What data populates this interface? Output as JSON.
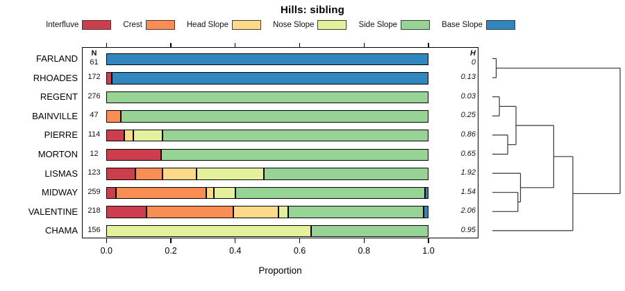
{
  "title": "Hills: sibling",
  "chart_data": {
    "type": "bar",
    "stacked": true,
    "orientation": "horizontal",
    "title": "Hills: sibling",
    "xlabel": "Proportion",
    "xlim": [
      0,
      1
    ],
    "xticks": [
      "0.0",
      "0.2",
      "0.4",
      "0.6",
      "0.8",
      "1.0"
    ],
    "grid": false,
    "legend_position": "top",
    "n_header": "N",
    "h_header": "H",
    "rows": [
      "FARLAND",
      "RHOADES",
      "REGENT",
      "BAINVILLE",
      "PIERRE",
      "MORTON",
      "LISMAS",
      "MIDWAY",
      "VALENTINE",
      "CHAMA"
    ],
    "n_values": [
      "61",
      "172",
      "276",
      "47",
      "114",
      "12",
      "123",
      "259",
      "218",
      "156"
    ],
    "h_values": [
      "0",
      "0.13",
      "0.03",
      "0.25",
      "0.86",
      "0.65",
      "1.92",
      "1.54",
      "2.06",
      "0.95"
    ],
    "series": [
      {
        "label": "Interfluve",
        "color": "#CC3D4E",
        "values": [
          0,
          0.018,
          0,
          0,
          0.055,
          0.17,
          0.09,
          0.03,
          0.125,
          0
        ]
      },
      {
        "label": "Crest",
        "color": "#F98E54",
        "values": [
          0,
          0,
          0,
          0.045,
          0,
          0,
          0.085,
          0.28,
          0.27,
          0
        ]
      },
      {
        "label": "Head Slope",
        "color": "#FDDA8A",
        "values": [
          0,
          0,
          0,
          0,
          0.03,
          0,
          0.105,
          0.025,
          0.14,
          0
        ]
      },
      {
        "label": "Nose Slope",
        "color": "#E4F09B",
        "values": [
          0,
          0,
          0,
          0,
          0.09,
          0,
          0.21,
          0.065,
          0.03,
          0.635
        ]
      },
      {
        "label": "Side Slope",
        "color": "#97D394",
        "values": [
          0,
          0,
          1,
          0.955,
          0.825,
          0.83,
          0.51,
          0.59,
          0.42,
          0.365
        ]
      },
      {
        "label": "Base Slope",
        "color": "#3187BD",
        "values": [
          1,
          0.982,
          0,
          0,
          0,
          0,
          0,
          0.01,
          0.015,
          0
        ]
      }
    ],
    "dendrogram": {
      "height": 1,
      "children": [
        {
          "height": 0.03,
          "children": [
            {
              "leaf": 0
            },
            {
              "leaf": 1
            }
          ]
        },
        {
          "height": 0.63,
          "children": [
            {
              "height": 0.48,
              "children": [
                {
                  "height": 0.185,
                  "children": [
                    {
                      "height": 0.055,
                      "children": [
                        {
                          "leaf": 2
                        },
                        {
                          "leaf": 3
                        }
                      ]
                    },
                    {
                      "height": 0.12,
                      "children": [
                        {
                          "leaf": 4
                        },
                        {
                          "leaf": 5
                        }
                      ]
                    }
                  ]
                },
                {
                  "height": 0.22,
                  "children": [
                    {
                      "leaf": 6
                    },
                    {
                      "height": 0.2,
                      "children": [
                        {
                          "leaf": 7
                        },
                        {
                          "leaf": 8
                        }
                      ]
                    }
                  ]
                }
              ]
            },
            {
              "leaf": 9
            }
          ]
        }
      ]
    }
  }
}
